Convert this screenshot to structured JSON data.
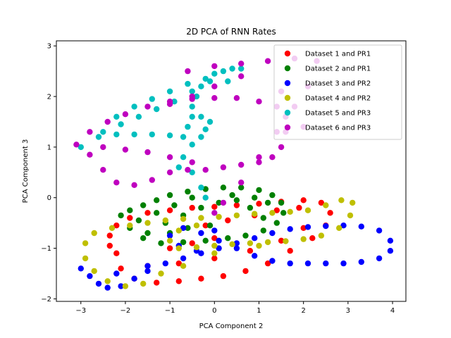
{
  "chart_data": {
    "type": "scatter",
    "title": "2D PCA of RNN Rates",
    "xlabel": "PCA Component 2",
    "ylabel": "PCA Component 3",
    "xlim": [
      -3.55,
      4.3
    ],
    "ylim": [
      -2.05,
      3.1
    ],
    "xticks": [
      -3,
      -2,
      -1,
      0,
      1,
      2,
      3,
      4
    ],
    "yticks": [
      -2,
      -1,
      0,
      1,
      2,
      3
    ],
    "grid": false,
    "legend_position": "upper right",
    "series": [
      {
        "name": "Dataset 1 and PR1",
        "color": "#ff0000",
        "points": [
          [
            -2.2,
            -1.1
          ],
          [
            -2.35,
            -0.95
          ],
          [
            -2.35,
            -0.75
          ],
          [
            -2.2,
            -0.55
          ],
          [
            -1.9,
            -0.4
          ],
          [
            -1.5,
            -0.3
          ],
          [
            -1.0,
            -0.25
          ],
          [
            -0.5,
            -0.2
          ],
          [
            0.0,
            -0.18
          ],
          [
            0.5,
            -0.15
          ],
          [
            1.0,
            -0.12
          ],
          [
            1.5,
            -0.08
          ],
          [
            2.0,
            -0.05
          ],
          [
            2.4,
            -0.1
          ],
          [
            2.6,
            -0.3
          ],
          [
            2.5,
            -0.55
          ],
          [
            2.2,
            -0.8
          ],
          [
            1.7,
            -1.05
          ],
          [
            1.2,
            -1.3
          ],
          [
            0.7,
            -1.45
          ],
          [
            0.2,
            -1.55
          ],
          [
            -0.3,
            -1.6
          ],
          [
            -0.8,
            -1.65
          ],
          [
            -1.3,
            -1.68
          ],
          [
            -1.8,
            -1.6
          ],
          [
            -2.1,
            -1.4
          ],
          [
            -1.5,
            -1.35
          ],
          [
            -0.8,
            -1.3
          ],
          [
            0.0,
            -1.2
          ],
          [
            0.8,
            -1.05
          ],
          [
            1.5,
            -0.85
          ],
          [
            2.0,
            -0.6
          ],
          [
            -0.2,
            -0.55
          ],
          [
            0.3,
            -0.45
          ],
          [
            0.9,
            -0.35
          ],
          [
            1.4,
            -0.25
          ],
          [
            1.9,
            -0.2
          ],
          [
            0.0,
            -0.8
          ],
          [
            -0.5,
            -0.9
          ],
          [
            -1.0,
            -1.0
          ]
        ]
      },
      {
        "name": "Dataset 2 and PR1",
        "color": "#008000",
        "points": [
          [
            -2.1,
            -0.35
          ],
          [
            -1.9,
            -0.25
          ],
          [
            -1.6,
            -0.15
          ],
          [
            -1.3,
            -0.05
          ],
          [
            -1.0,
            0.05
          ],
          [
            -0.6,
            0.12
          ],
          [
            -0.2,
            0.17
          ],
          [
            0.2,
            0.2
          ],
          [
            0.6,
            0.2
          ],
          [
            1.0,
            0.15
          ],
          [
            1.3,
            0.05
          ],
          [
            1.5,
            -0.1
          ],
          [
            1.55,
            -0.3
          ],
          [
            1.4,
            -0.5
          ],
          [
            1.1,
            -0.65
          ],
          [
            0.7,
            -0.75
          ],
          [
            0.3,
            -0.8
          ],
          [
            -0.2,
            -0.85
          ],
          [
            -0.7,
            -0.88
          ],
          [
            -1.2,
            -0.9
          ],
          [
            -1.6,
            -0.8
          ],
          [
            -1.9,
            -0.6
          ],
          [
            -1.5,
            -0.7
          ],
          [
            -1.1,
            -0.5
          ],
          [
            -0.7,
            -0.35
          ],
          [
            -0.3,
            -0.2
          ],
          [
            0.1,
            -0.1
          ],
          [
            0.5,
            -0.05
          ],
          [
            0.9,
            0.0
          ],
          [
            1.2,
            -0.1
          ],
          [
            -0.5,
            0.0
          ],
          [
            -0.9,
            -0.15
          ],
          [
            -1.3,
            -0.3
          ],
          [
            -1.7,
            -0.45
          ],
          [
            0.4,
            0.05
          ],
          [
            0.8,
            -0.2
          ],
          [
            1.1,
            -0.4
          ],
          [
            -0.1,
            -0.55
          ],
          [
            -0.6,
            -0.6
          ],
          [
            -1.0,
            -0.7
          ]
        ]
      },
      {
        "name": "Dataset 3 and PR2",
        "color": "#0000ff",
        "points": [
          [
            -3.0,
            -1.4
          ],
          [
            -2.8,
            -1.55
          ],
          [
            -2.6,
            -1.7
          ],
          [
            -2.4,
            -1.78
          ],
          [
            -2.1,
            -1.75
          ],
          [
            -1.8,
            -1.6
          ],
          [
            -1.5,
            -1.45
          ],
          [
            -1.1,
            -1.3
          ],
          [
            -0.7,
            -1.2
          ],
          [
            -0.3,
            -1.1
          ],
          [
            0.1,
            -1.0
          ],
          [
            0.5,
            -0.9
          ],
          [
            0.9,
            -0.8
          ],
          [
            1.3,
            -0.7
          ],
          [
            1.7,
            -0.62
          ],
          [
            2.1,
            -0.58
          ],
          [
            2.5,
            -0.56
          ],
          [
            2.9,
            -0.55
          ],
          [
            3.3,
            -0.57
          ],
          [
            3.7,
            -0.65
          ],
          [
            3.95,
            -0.85
          ],
          [
            3.95,
            -1.05
          ],
          [
            3.7,
            -1.2
          ],
          [
            3.3,
            -1.27
          ],
          [
            2.9,
            -1.3
          ],
          [
            2.5,
            -1.3
          ],
          [
            2.1,
            -1.3
          ],
          [
            1.7,
            -1.3
          ],
          [
            1.3,
            -1.25
          ],
          [
            0.9,
            -1.15
          ],
          [
            0.5,
            -1.0
          ],
          [
            0.1,
            -0.85
          ],
          [
            -0.3,
            -0.7
          ],
          [
            -0.7,
            -0.6
          ],
          [
            -1.0,
            -0.75
          ],
          [
            -0.8,
            -0.95
          ],
          [
            -0.4,
            -1.05
          ],
          [
            -1.5,
            -1.35
          ],
          [
            -2.2,
            -1.5
          ],
          [
            0.0,
            -0.65
          ]
        ]
      },
      {
        "name": "Dataset 4 and PR2",
        "color": "#bfbf00",
        "points": [
          [
            -2.9,
            -1.2
          ],
          [
            -2.9,
            -0.9
          ],
          [
            -2.7,
            -0.7
          ],
          [
            -2.3,
            -0.6
          ],
          [
            -1.9,
            -0.55
          ],
          [
            -1.5,
            -0.5
          ],
          [
            -1.1,
            -0.45
          ],
          [
            -0.7,
            -0.42
          ],
          [
            -0.3,
            -0.4
          ],
          [
            0.1,
            -0.38
          ],
          [
            0.5,
            -0.35
          ],
          [
            0.9,
            -0.32
          ],
          [
            1.3,
            -0.3
          ],
          [
            1.7,
            -0.28
          ],
          [
            2.1,
            -0.25
          ],
          [
            2.5,
            -0.15
          ],
          [
            2.85,
            -0.05
          ],
          [
            3.1,
            -0.1
          ],
          [
            3.05,
            -0.35
          ],
          [
            2.8,
            -0.6
          ],
          [
            2.4,
            -0.75
          ],
          [
            2.0,
            -0.82
          ],
          [
            1.6,
            -0.86
          ],
          [
            1.2,
            -0.88
          ],
          [
            0.8,
            -0.9
          ],
          [
            0.4,
            -0.92
          ],
          [
            0.0,
            -0.95
          ],
          [
            -0.4,
            -0.98
          ],
          [
            -0.8,
            -1.0
          ],
          [
            -1.0,
            -0.85
          ],
          [
            -0.8,
            -0.65
          ],
          [
            -0.4,
            -0.55
          ],
          [
            -1.2,
            -1.5
          ],
          [
            -1.6,
            -1.7
          ],
          [
            -2.0,
            -1.75
          ],
          [
            -2.4,
            -1.65
          ],
          [
            -2.7,
            -1.45
          ],
          [
            -0.7,
            -1.35
          ],
          [
            0.0,
            -1.1
          ],
          [
            1.0,
            -0.95
          ]
        ]
      },
      {
        "name": "Dataset 5 and PR3",
        "color": "#00bfbf",
        "points": [
          [
            -3.0,
            1.0
          ],
          [
            -2.6,
            1.2
          ],
          [
            -2.2,
            1.25
          ],
          [
            -1.8,
            1.25
          ],
          [
            -1.4,
            1.25
          ],
          [
            -1.0,
            1.23
          ],
          [
            -0.7,
            1.2
          ],
          [
            -0.6,
            1.4
          ],
          [
            -0.5,
            1.6
          ],
          [
            -0.5,
            1.8
          ],
          [
            -0.4,
            2.0
          ],
          [
            -0.3,
            2.2
          ],
          [
            -0.2,
            2.35
          ],
          [
            0.0,
            2.45
          ],
          [
            0.2,
            2.5
          ],
          [
            0.4,
            2.55
          ],
          [
            0.6,
            2.55
          ],
          [
            -0.1,
            2.3
          ],
          [
            -0.5,
            2.1
          ],
          [
            -0.9,
            1.9
          ],
          [
            -1.3,
            1.75
          ],
          [
            -1.7,
            1.6
          ],
          [
            -2.1,
            1.45
          ],
          [
            -2.5,
            1.3
          ],
          [
            -2.2,
            1.6
          ],
          [
            -1.8,
            1.8
          ],
          [
            -1.4,
            1.95
          ],
          [
            -1.0,
            2.1
          ],
          [
            -0.6,
            2.25
          ],
          [
            -0.3,
            1.6
          ],
          [
            -0.2,
            1.35
          ],
          [
            -0.5,
            1.05
          ],
          [
            -0.7,
            0.8
          ],
          [
            -0.8,
            0.6
          ],
          [
            -0.5,
            0.5
          ],
          [
            -0.3,
            0.2
          ],
          [
            -0.2,
            0.0
          ],
          [
            -0.3,
            1.2
          ],
          [
            -0.1,
            1.5
          ],
          [
            0.3,
            2.3
          ]
        ]
      },
      {
        "name": "Dataset 6 and PR3",
        "color": "#bf00bf",
        "points": [
          [
            -3.1,
            1.05
          ],
          [
            -2.8,
            1.3
          ],
          [
            -2.4,
            1.5
          ],
          [
            -2.0,
            1.65
          ],
          [
            -1.5,
            1.8
          ],
          [
            -1.0,
            1.9
          ],
          [
            -0.5,
            1.95
          ],
          [
            0.0,
            1.97
          ],
          [
            0.5,
            1.97
          ],
          [
            1.0,
            1.9
          ],
          [
            1.4,
            1.8
          ],
          [
            1.6,
            1.6
          ],
          [
            1.6,
            1.3
          ],
          [
            1.5,
            1.0
          ],
          [
            1.3,
            0.8
          ],
          [
            1.0,
            0.7
          ],
          [
            0.6,
            0.65
          ],
          [
            0.2,
            0.6
          ],
          [
            -0.2,
            0.55
          ],
          [
            -0.6,
            0.55
          ],
          [
            -1.0,
            0.5
          ],
          [
            -1.4,
            0.35
          ],
          [
            -1.8,
            0.25
          ],
          [
            -2.2,
            0.3
          ],
          [
            -2.5,
            0.55
          ],
          [
            -2.8,
            0.85
          ],
          [
            -2.5,
            1.0
          ],
          [
            -2.0,
            0.95
          ],
          [
            -1.5,
            0.9
          ],
          [
            -1.0,
            0.8
          ],
          [
            -0.5,
            0.7
          ],
          [
            -0.6,
            2.5
          ],
          [
            0.0,
            2.6
          ],
          [
            0.6,
            2.65
          ],
          [
            1.2,
            2.7
          ],
          [
            1.8,
            2.75
          ],
          [
            2.3,
            2.7
          ],
          [
            2.1,
            2.2
          ],
          [
            1.8,
            1.8
          ],
          [
            1.4,
            1.3
          ],
          [
            1.0,
            0.8
          ],
          [
            0.6,
            0.3
          ],
          [
            0.2,
            -0.1
          ],
          [
            0.0,
            -0.3
          ],
          [
            0.6,
            2.4
          ],
          [
            0.0,
            2.2
          ],
          [
            -0.5,
            2.0
          ],
          [
            -1.0,
            1.85
          ],
          [
            1.5,
            2.1
          ],
          [
            2.0,
            1.4
          ]
        ]
      }
    ]
  }
}
